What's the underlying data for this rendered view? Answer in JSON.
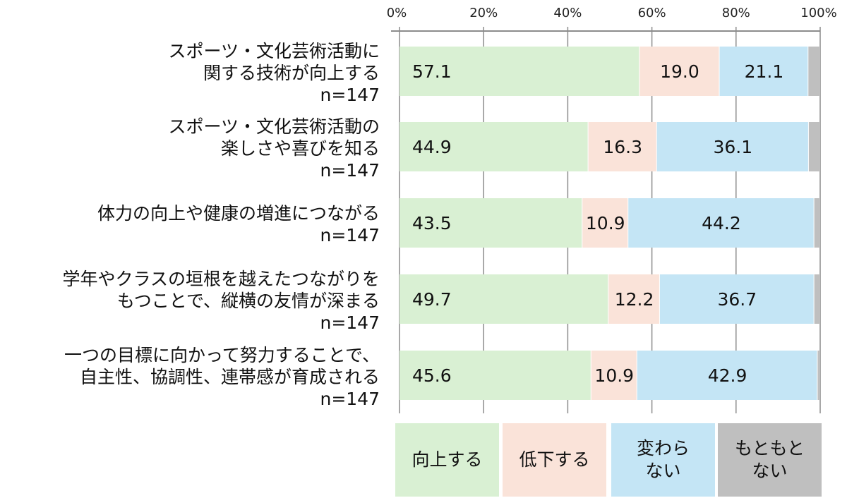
{
  "chart_data": {
    "type": "bar",
    "orientation": "horizontal",
    "stacked": true,
    "percent": true,
    "categories": [
      "スポーツ・文化芸術活動に\n関する技術が向上する",
      "スポーツ・文化芸術活動の\n楽しさや喜びを知る",
      "体力の向上や健康の増進につながる",
      "学年やクラスの垣根を越えたつながりを\nもつことで、縦横の友情が深まる",
      "一つの目標に向かって努力することで、\n自主性、協調性、連帯感が育成される"
    ],
    "n_labels": [
      "n=147",
      "n=147",
      "n=147",
      "n=147",
      "n=147"
    ],
    "series": [
      {
        "name": "向上する",
        "color": "#d9f0d3",
        "values": [
          57.1,
          44.9,
          43.5,
          49.7,
          45.6
        ]
      },
      {
        "name": "低下する",
        "color": "#fae3d9",
        "values": [
          19.0,
          16.3,
          10.9,
          12.2,
          10.9
        ]
      },
      {
        "name": "変わら\nない",
        "color": "#c4e5f5",
        "values": [
          21.1,
          36.1,
          44.2,
          36.7,
          42.9
        ]
      },
      {
        "name": "もともと\nない",
        "color": "#bfbfbf",
        "values": [
          2.8,
          2.7,
          1.4,
          1.4,
          0.6
        ]
      }
    ],
    "labeled_series": [
      0,
      1,
      2
    ],
    "xticks": [
      "0%",
      "20%",
      "40%",
      "60%",
      "80%",
      "100%"
    ],
    "xlim": [
      0,
      100
    ],
    "grid": true,
    "axis_position": "top",
    "legend_position": "bottom"
  }
}
